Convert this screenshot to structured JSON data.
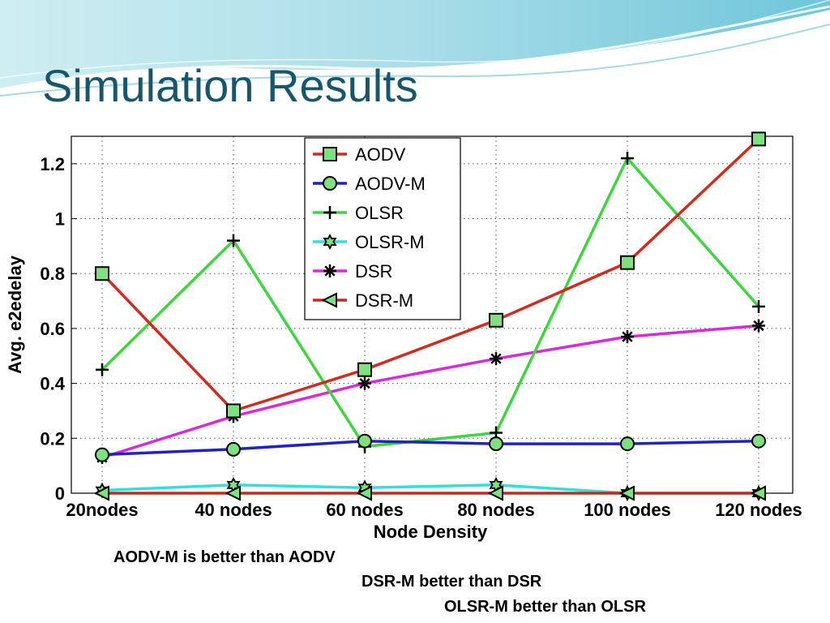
{
  "slide": {
    "title": "Simulation Results",
    "notes": [
      "AODV-M is better than AODV",
      "DSR-M better than DSR",
      "OLSR-M better than OLSR"
    ]
  },
  "chart_data": {
    "type": "line",
    "categories": [
      "20nodes",
      "40 nodes",
      "60 nodes",
      "80 nodes",
      "100 nodes",
      "120 nodes"
    ],
    "xlabel": "Node Density",
    "ylabel": "Avg. e2edelay",
    "ylim": [
      0,
      1.3
    ],
    "yticks": [
      0,
      0.2,
      0.4,
      0.6,
      0.8,
      1,
      1.2
    ],
    "ytick_labels": [
      "0",
      "0.2",
      "0.4",
      "0.6",
      "0.8",
      "1",
      "1.2"
    ],
    "grid": true,
    "legend_position": "top-right",
    "series": [
      {
        "name": "AODV",
        "color": "#d22b1e",
        "marker": "square",
        "marker_fill": "#7fe07f",
        "values": [
          0.8,
          0.3,
          0.45,
          0.63,
          0.84,
          1.29
        ]
      },
      {
        "name": "AODV-M",
        "color": "#1f22c8",
        "marker": "circle",
        "marker_fill": "#7fe07f",
        "values": [
          0.14,
          0.16,
          0.19,
          0.18,
          0.18,
          0.19
        ]
      },
      {
        "name": "OLSR",
        "color": "#3ed63e",
        "marker": "plus",
        "marker_fill": "none",
        "values": [
          0.45,
          0.92,
          0.17,
          0.22,
          1.22,
          0.68
        ]
      },
      {
        "name": "OLSR-M",
        "color": "#2ee0e0",
        "marker": "hexagram",
        "marker_fill": "#7fe07f",
        "values": [
          0.01,
          0.03,
          0.02,
          0.03,
          0.0,
          0.0
        ]
      },
      {
        "name": "DSR",
        "color": "#d92ad9",
        "marker": "asterisk",
        "marker_fill": "none",
        "values": [
          0.13,
          0.28,
          0.4,
          0.49,
          0.57,
          0.61
        ]
      },
      {
        "name": "DSR-M",
        "color": "#c8281c",
        "marker": "triangle-left",
        "marker_fill": "#7fe07f",
        "values": [
          0.0,
          0.0,
          0.0,
          0.0,
          0.0,
          0.0
        ]
      }
    ]
  }
}
